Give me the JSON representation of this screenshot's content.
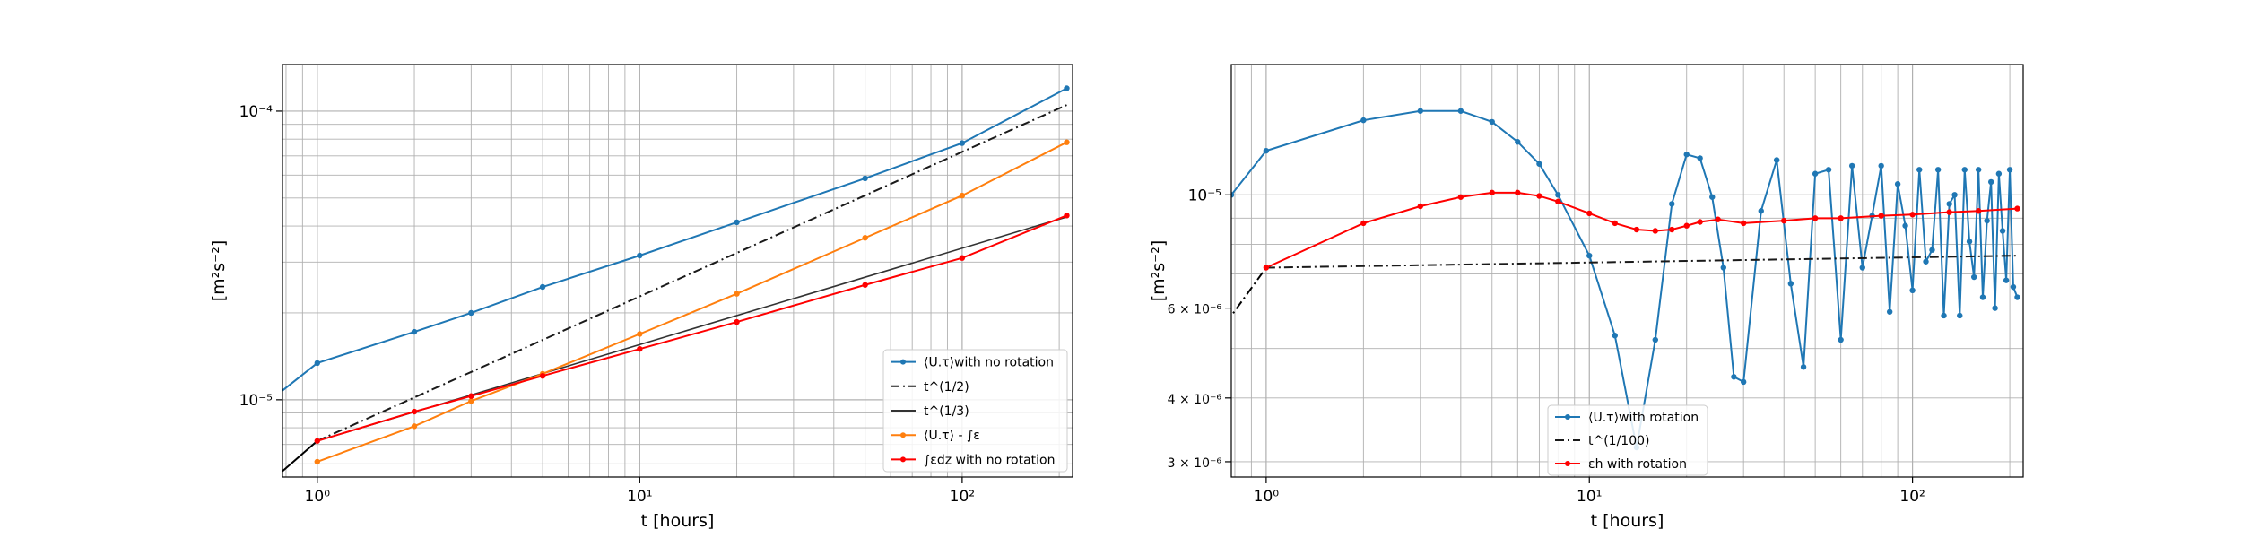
{
  "chart_data": [
    {
      "type": "line",
      "xscale": "log",
      "yscale": "log",
      "xlim": [
        0.78,
        220
      ],
      "ylim": [
        5.4e-06,
        0.000145
      ],
      "grid": true,
      "xlabel": "t [hours]",
      "ylabel": "[m²s⁻²]",
      "x_ticks": [
        {
          "value": 1,
          "label": "10⁰"
        },
        {
          "value": 10,
          "label": "10¹"
        },
        {
          "value": 100,
          "label": "10²"
        }
      ],
      "y_ticks": [
        {
          "value": 1e-05,
          "label": "10⁻⁵"
        },
        {
          "value": 0.0001,
          "label": "10⁻⁴"
        }
      ],
      "legend_position": "lower-right",
      "series": [
        {
          "name": "⟨U.τ⟩with no rotation",
          "color": "#1f77b4",
          "marker": "dot",
          "linestyle": "solid",
          "x": [
            0.75,
            1,
            2,
            3,
            5,
            10,
            20,
            50,
            100,
            211
          ],
          "y": [
            1.04e-05,
            1.34e-05,
            1.72e-05,
            2e-05,
            2.46e-05,
            3.16e-05,
            4.12e-05,
            5.85e-05,
            7.75e-05,
            0.00012
          ]
        },
        {
          "name": "t^(1/2)",
          "color": "#1a1a1a",
          "marker": "none",
          "linestyle": "dashdot",
          "x": [
            1,
            211
          ],
          "y": [
            7.2e-06,
            0.000105
          ]
        },
        {
          "name": "t^(1/3)",
          "color": "#333333",
          "marker": "none",
          "linestyle": "solid",
          "x": [
            1,
            211
          ],
          "y": [
            7.2e-06,
            4.3e-05
          ]
        },
        {
          "name": "⟨U.τ⟩ - ∫ε",
          "color": "#ff7f0e",
          "marker": "dot",
          "linestyle": "solid",
          "x": [
            1,
            2,
            3,
            5,
            10,
            20,
            50,
            100,
            211
          ],
          "y": [
            6.1e-06,
            8.1e-06,
            9.9e-06,
            1.23e-05,
            1.69e-05,
            2.33e-05,
            3.64e-05,
            5.1e-05,
            7.8e-05
          ]
        },
        {
          "name": "∫εdz with  no rotation",
          "color": "#ff0000",
          "marker": "dot",
          "linestyle": "solid",
          "x": [
            1,
            2,
            3,
            5,
            10,
            20,
            50,
            100,
            211
          ],
          "y": [
            7.2e-06,
            9.1e-06,
            1.03e-05,
            1.21e-05,
            1.5e-05,
            1.86e-05,
            2.5e-05,
            3.1e-05,
            4.35e-05
          ]
        }
      ],
      "extra_lines": [
        {
          "color": "#000000",
          "x": [
            0.75,
            1
          ],
          "y": [
            5.45e-06,
            7.2e-06
          ]
        }
      ]
    },
    {
      "type": "line",
      "xscale": "log",
      "yscale": "log",
      "xlim": [
        0.78,
        220
      ],
      "ylim": [
        2.8e-06,
        1.8e-05
      ],
      "grid": true,
      "xlabel": "t [hours]",
      "ylabel": "[m²s⁻²]",
      "x_ticks": [
        {
          "value": 1,
          "label": "10⁰"
        },
        {
          "value": 10,
          "label": "10¹"
        },
        {
          "value": 100,
          "label": "10²"
        }
      ],
      "y_ticks": [
        {
          "value": 3e-06,
          "label": "3 × 10⁻⁶"
        },
        {
          "value": 4e-06,
          "label": "4 × 10⁻⁶"
        },
        {
          "value": 6e-06,
          "label": "6 × 10⁻⁶"
        },
        {
          "value": 1e-05,
          "label": "10⁻⁵"
        }
      ],
      "legend_position": "lower-center",
      "series": [
        {
          "name": "⟨U.τ⟩with rotation",
          "color": "#1f77b4",
          "marker": "dot",
          "linestyle": "solid",
          "oscillating": true,
          "x": [
            0.78,
            1,
            2,
            3,
            4,
            5,
            6,
            7,
            8,
            10,
            12,
            14,
            16,
            18,
            20,
            22,
            24,
            26,
            28,
            30,
            34,
            38,
            42,
            46,
            50,
            55,
            60,
            65,
            70,
            75,
            80,
            85,
            90,
            95,
            100,
            105,
            110,
            115,
            120,
            125,
            130,
            135,
            140,
            145,
            150,
            155,
            160,
            165,
            170,
            175,
            180,
            185,
            190,
            195,
            200,
            205,
            211
          ],
          "y": [
            1e-05,
            1.22e-05,
            1.4e-05,
            1.46e-05,
            1.46e-05,
            1.39e-05,
            1.27e-05,
            1.15e-05,
            1e-05,
            7.6e-06,
            5.3e-06,
            3.2e-06,
            5.2e-06,
            9.6e-06,
            1.2e-05,
            1.18e-05,
            9.9e-06,
            7.2e-06,
            4.4e-06,
            4.3e-06,
            9.3e-06,
            1.17e-05,
            6.7e-06,
            4.6e-06,
            1.1e-05,
            1.12e-05,
            5.2e-06,
            1.14e-05,
            7.2e-06,
            9.1e-06,
            1.14e-05,
            5.9e-06,
            1.05e-05,
            8.7e-06,
            6.5e-06,
            1.12e-05,
            7.4e-06,
            7.8e-06,
            1.12e-05,
            5.8e-06,
            9.6e-06,
            1e-05,
            5.8e-06,
            1.12e-05,
            8.1e-06,
            6.9e-06,
            1.12e-05,
            6.3e-06,
            8.9e-06,
            1.06e-05,
            6e-06,
            1.1e-05,
            8.5e-06,
            6.8e-06,
            1.12e-05,
            6.6e-06,
            6.3e-06
          ]
        },
        {
          "name": "t^(1/100)",
          "color": "#1a1a1a",
          "marker": "none",
          "linestyle": "dashdot",
          "x": [
            1,
            211
          ],
          "y": [
            7.2e-06,
            7.6e-06
          ]
        },
        {
          "name": "εh with rotation",
          "color": "#ff0000",
          "marker": "dot",
          "linestyle": "solid",
          "x": [
            1,
            2,
            3,
            4,
            5,
            6,
            7,
            8,
            10,
            12,
            14,
            16,
            18,
            20,
            22,
            25,
            30,
            40,
            50,
            60,
            80,
            100,
            130,
            160,
            211
          ],
          "y": [
            7.2e-06,
            8.8e-06,
            9.5e-06,
            9.9e-06,
            1.01e-05,
            1.01e-05,
            9.95e-06,
            9.7e-06,
            9.2e-06,
            8.8e-06,
            8.55e-06,
            8.5e-06,
            8.55e-06,
            8.7e-06,
            8.85e-06,
            8.95e-06,
            8.8e-06,
            8.9e-06,
            9e-06,
            9e-06,
            9.1e-06,
            9.15e-06,
            9.25e-06,
            9.3e-06,
            9.4e-06
          ]
        }
      ],
      "extra_lines": [
        {
          "color": "#000000",
          "linestyle": "dashdot",
          "x": [
            0.75,
            1
          ],
          "y": [
            5.6e-06,
            7.2e-06
          ]
        }
      ]
    }
  ]
}
